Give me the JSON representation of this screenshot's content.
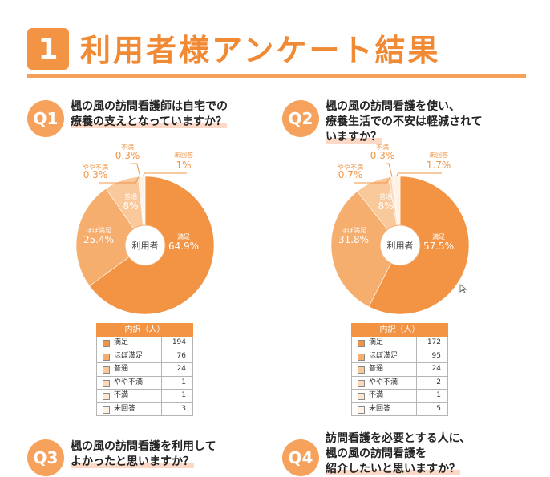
{
  "header": {
    "number": "1",
    "title": "利用者様アンケート結果"
  },
  "questions": [
    {
      "label": "Q1",
      "lines": [
        "楓の風の訪問看護師は自宅での",
        "療養の支えとなっていますか？"
      ]
    },
    {
      "label": "Q2",
      "lines": [
        "楓の風の訪問看護を使い、",
        "療養生活での不安は軽減されて",
        "いますか？"
      ]
    },
    {
      "label": "Q3",
      "lines": [
        "楓の風の訪問看護を利用して",
        "よかったと思いますか？"
      ]
    },
    {
      "label": "Q4",
      "lines": [
        "訪問看護を必要とする人に、",
        "楓の風の訪問看護を",
        "紹介したいと思いますか？"
      ]
    }
  ],
  "legend_header": "内訳（人）",
  "legend_labels": [
    "満足",
    "ほぼ満足",
    "普通",
    "やや不満",
    "不満",
    "未回答"
  ],
  "colors": [
    "#f29444",
    "#f6ae6e",
    "#f9c89b",
    "#fbd9b8",
    "#fde6d0",
    "#fff1e4"
  ],
  "chart_data": [
    {
      "type": "pie",
      "title": "",
      "center_label": "利用者",
      "categories": [
        "満足",
        "ほぼ満足",
        "普通",
        "やや不満",
        "不満",
        "未回答"
      ],
      "percent_labels": [
        "64.9%",
        "25.4%",
        "8%",
        "0.3%",
        "0.3%",
        "1%"
      ],
      "values": [
        64.9,
        25.4,
        8,
        0.3,
        0.3,
        1
      ],
      "counts": [
        "194",
        "76",
        "24",
        "1",
        "1",
        "3"
      ]
    },
    {
      "type": "pie",
      "title": "",
      "center_label": "利用者",
      "categories": [
        "満足",
        "ほぼ満足",
        "普通",
        "やや不満",
        "不満",
        "未回答"
      ],
      "percent_labels": [
        "57.5%",
        "31.8%",
        "8%",
        "0.7%",
        "0.3%",
        "1.7%"
      ],
      "values": [
        57.5,
        31.8,
        8,
        0.7,
        0.3,
        1.7
      ],
      "counts": [
        "172",
        "95",
        "24",
        "2",
        "1",
        "5"
      ]
    }
  ]
}
